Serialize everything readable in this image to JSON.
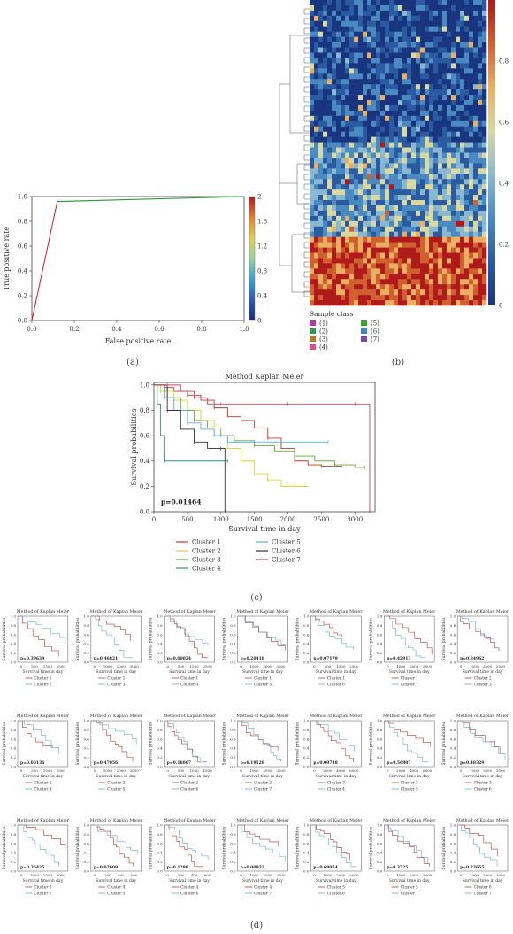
{
  "panels": {
    "a": "(a)",
    "b": "(b)",
    "c": "(c)",
    "d": "(d)"
  },
  "chart_data": [
    {
      "id": "roc",
      "type": "line",
      "xlabel": "False positive rate",
      "ylabel": "True positive rate",
      "xlim": [
        0,
        1
      ],
      "ylim": [
        0,
        1
      ],
      "xticks": [
        "0.0",
        "0.2",
        "0.4",
        "0.6",
        "0.8",
        "1.0"
      ],
      "yticks": [
        "0.0",
        "0.2",
        "0.4",
        "0.6",
        "0.8",
        "1.0"
      ],
      "x": [
        0,
        0.12,
        1.0
      ],
      "y": [
        0,
        0.96,
        1.0
      ],
      "colorbar": {
        "range": [
          0,
          2
        ],
        "ticks": [
          "0",
          "0.4",
          "0.8",
          "1.2",
          "1.6",
          "2"
        ]
      },
      "colors": [
        "#d7191c",
        "#2e9a3a"
      ]
    },
    {
      "id": "heatmap",
      "type": "heatmap",
      "colorbar": {
        "range": [
          0,
          1
        ],
        "ticks": [
          "0",
          "0.2",
          "0.4",
          "0.6",
          "0.8"
        ]
      },
      "legend_title": "Sample class",
      "legend": [
        {
          "label": "(1)",
          "color": "#b23aa0"
        },
        {
          "label": "(2)",
          "color": "#2a9a55"
        },
        {
          "label": "(3)",
          "color": "#b87a2a"
        },
        {
          "label": "(4)",
          "color": "#e04a8a"
        },
        {
          "label": "(5)",
          "color": "#3aa02a"
        },
        {
          "label": "(6)",
          "color": "#3a8ac8"
        },
        {
          "label": "(7)",
          "color": "#7a4ab0"
        }
      ]
    },
    {
      "id": "km-main",
      "type": "line",
      "title": "Method Kaplan Meier",
      "xlabel": "Survival time in day",
      "ylabel": "Survival probabilities",
      "xlim": [
        0,
        3300
      ],
      "ylim": [
        0,
        1.02
      ],
      "xticks": [
        0,
        500,
        1000,
        1500,
        2000,
        2500,
        3000
      ],
      "yticks": [
        "0.0",
        "0.2",
        "0.4",
        "0.6",
        "0.8",
        "1.0"
      ],
      "annotation": "p=0.01464",
      "series": [
        {
          "name": "Cluster 1",
          "color": "#c0392b",
          "x": [
            0,
            150,
            300,
            500,
            700,
            900,
            1100,
            1300,
            1500,
            1700,
            1900,
            2100,
            2300,
            2500,
            2700,
            2800
          ],
          "y": [
            1,
            0.98,
            0.95,
            0.92,
            0.88,
            0.82,
            0.75,
            0.72,
            0.66,
            0.58,
            0.5,
            0.4,
            0.37,
            0.36,
            0.36,
            0.36
          ]
        },
        {
          "name": "Cluster 2",
          "color": "#e3d02a",
          "x": [
            0,
            100,
            300,
            500,
            700,
            900,
            1100,
            1300,
            1500,
            1700,
            1900,
            2100,
            2300
          ],
          "y": [
            1,
            0.95,
            0.88,
            0.8,
            0.72,
            0.6,
            0.5,
            0.4,
            0.3,
            0.25,
            0.2,
            0.2,
            0.2
          ]
        },
        {
          "name": "Cluster 3",
          "color": "#6aaa3a",
          "x": [
            0,
            200,
            400,
            600,
            800,
            1000,
            1200,
            1500,
            1800,
            2100,
            2400,
            2700,
            3000,
            3150
          ],
          "y": [
            1,
            0.9,
            0.8,
            0.72,
            0.66,
            0.6,
            0.56,
            0.52,
            0.48,
            0.44,
            0.4,
            0.37,
            0.35,
            0.35
          ]
        },
        {
          "name": "Cluster 4",
          "color": "#2e9a6a",
          "x": [
            0,
            50,
            100,
            150,
            200,
            1100
          ],
          "y": [
            1,
            0.85,
            0.6,
            0.4,
            0.4,
            0.4
          ]
        },
        {
          "name": "Cluster 5",
          "color": "#5aaee0",
          "x": [
            0,
            150,
            300,
            500,
            700,
            900,
            1100,
            1500,
            2000,
            2600
          ],
          "y": [
            1,
            0.9,
            0.8,
            0.7,
            0.65,
            0.6,
            0.55,
            0.55,
            0.55,
            0.55
          ]
        },
        {
          "name": "Cluster 6",
          "color": "#333333",
          "x": [
            0,
            200,
            400,
            600,
            800,
            1000,
            1050,
            1060
          ],
          "y": [
            1,
            0.8,
            0.65,
            0.55,
            0.5,
            0.5,
            0.5,
            0.0
          ]
        },
        {
          "name": "Cluster 7",
          "color": "#d0445a",
          "x": [
            0,
            200,
            400,
            600,
            800,
            1000,
            1500,
            2000,
            2500,
            3000,
            3200,
            3220
          ],
          "y": [
            1,
            1,
            0.95,
            0.9,
            0.85,
            0.85,
            0.85,
            0.85,
            0.85,
            0.85,
            0.85,
            0.0
          ]
        }
      ]
    },
    {
      "id": "km-pairs",
      "type": "line",
      "title": "Method of Kaplan Meier",
      "xlabel": "Survival time in day",
      "ylabel": "Survival probabilities",
      "pairs": [
        {
          "p": "p=0.39639",
          "a": "Cluster 1",
          "b": "Cluster 2",
          "xticks": [
            "0",
            "500",
            "1500",
            "2500"
          ]
        },
        {
          "p": "p=0.46821",
          "a": "Cluster 1",
          "b": "Cluster 3",
          "xticks": [
            "0",
            "1000",
            "2000",
            "3000"
          ]
        },
        {
          "p": "p=0.00024",
          "a": "Cluster 1",
          "b": "Cluster 4",
          "xticks": [
            "0",
            "500",
            "1500",
            "2500"
          ]
        },
        {
          "p": "p=0.20418",
          "a": "Cluster 1",
          "b": "Cluster 5",
          "xticks": [
            "0",
            "1000",
            "2000",
            "3000"
          ]
        },
        {
          "p": "p=0.07179",
          "a": "Cluster 1",
          "b": "Cluster 6",
          "xticks": [
            "0",
            "500",
            "1500",
            "2500"
          ]
        },
        {
          "p": "p=0.42913",
          "a": "Cluster 1",
          "b": "Cluster 7",
          "xticks": [
            "0",
            "1000",
            "2000",
            "3000"
          ]
        },
        {
          "p": "p=0.84962",
          "a": "Cluster 2",
          "b": "Cluster 3",
          "xticks": [
            "0",
            "1000",
            "2000",
            "3000"
          ]
        },
        {
          "p": "p=0.00136",
          "a": "Cluster 2",
          "b": "Cluster 4",
          "xticks": [
            "0",
            "500",
            "1000",
            "1500"
          ]
        },
        {
          "p": "p=0.47056",
          "a": "Cluster 2",
          "b": "Cluster 5",
          "xticks": [
            "0",
            "1000",
            "2000",
            "3000"
          ]
        },
        {
          "p": "p=0.16067",
          "a": "Cluster 2",
          "b": "Cluster 6",
          "xticks": [
            "0",
            "500",
            "1000",
            "1500"
          ]
        },
        {
          "p": "p=0.19128",
          "a": "Cluster 2",
          "b": "Cluster 7",
          "xticks": [
            "0",
            "1000",
            "2000",
            "3000"
          ]
        },
        {
          "p": "p=0.00738",
          "a": "Cluster 3",
          "b": "Cluster 4",
          "xticks": [
            "0",
            "2000",
            "4000",
            "6000"
          ]
        },
        {
          "p": "p=0.56807",
          "a": "Cluster 3",
          "b": "Cluster 5",
          "xticks": [
            "0",
            "2000",
            "4000",
            "6000"
          ]
        },
        {
          "p": "p=0.48329",
          "a": "Cluster 3",
          "b": "Cluster 6",
          "xticks": [
            "0",
            "1000",
            "2000",
            "3000"
          ]
        },
        {
          "p": "p=0.36425",
          "a": "Cluster 3",
          "b": "Cluster 7",
          "xticks": [
            "0",
            "1000",
            "2000",
            "3000"
          ]
        },
        {
          "p": "p=0.02609",
          "a": "Cluster 4",
          "b": "Cluster 5",
          "xticks": [
            "0",
            "200",
            "400",
            "600"
          ]
        },
        {
          "p": "p=0.1299",
          "a": "Cluster 4",
          "b": "Cluster 6",
          "xticks": [
            "0",
            "200",
            "400",
            "600"
          ]
        },
        {
          "p": "p=0.00932",
          "a": "Cluster 4",
          "b": "Cluster 7",
          "xticks": [
            "0",
            "1000",
            "2000",
            "3000"
          ]
        },
        {
          "p": "p=0.68074",
          "a": "Cluster 5",
          "b": "Cluster 6",
          "xticks": [
            "0",
            "1000",
            "2000",
            "3000"
          ]
        },
        {
          "p": "p=0.3725",
          "a": "Cluster 5",
          "b": "Cluster 7",
          "xticks": [
            "0",
            "1000",
            "2000",
            "3000"
          ]
        },
        {
          "p": "p=0.23655",
          "a": "Cluster 6",
          "b": "Cluster 7",
          "xticks": [
            "0",
            "1000",
            "2000",
            "3000"
          ]
        }
      ]
    }
  ]
}
